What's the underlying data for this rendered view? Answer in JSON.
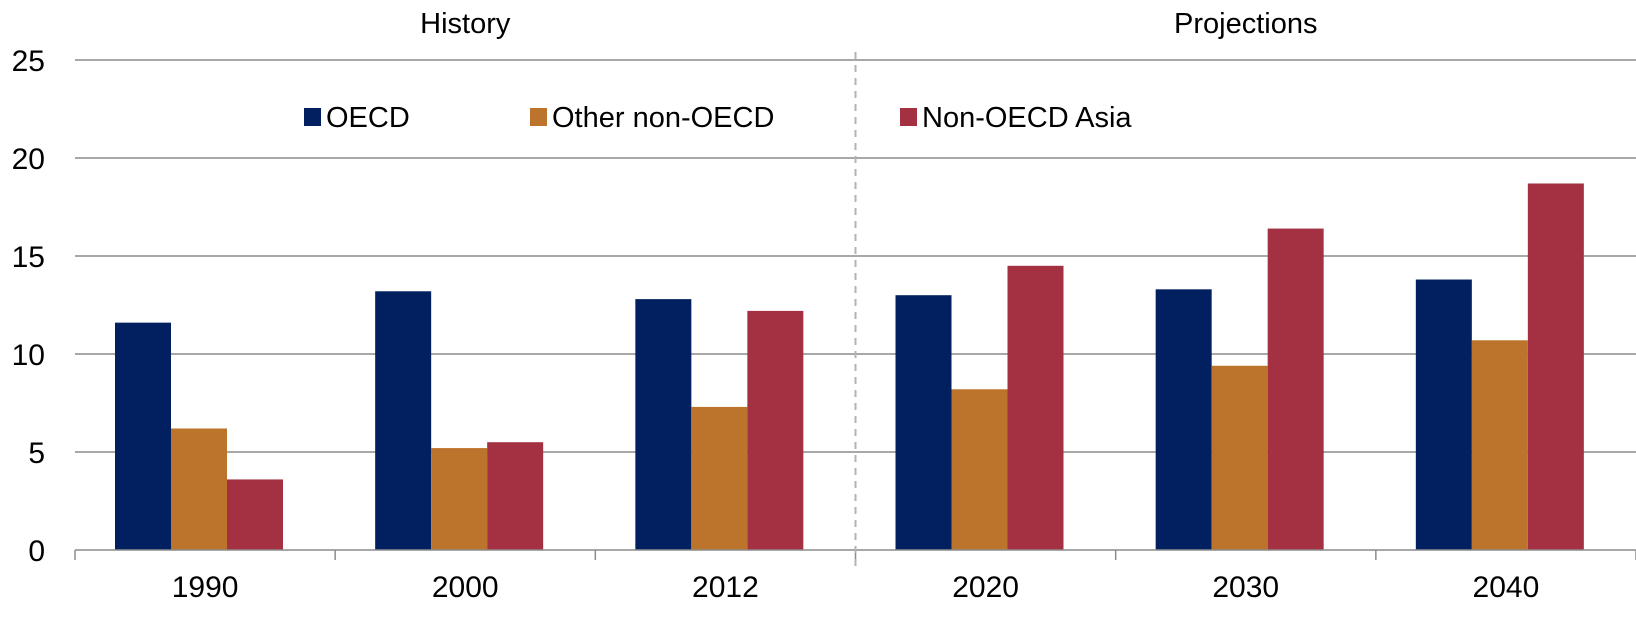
{
  "chart_data": {
    "type": "bar",
    "title": "",
    "xlabel": "",
    "ylabel": "",
    "ylim": [
      0,
      25
    ],
    "yticks": [
      "0",
      "5",
      "10",
      "15",
      "20",
      "25"
    ],
    "grid": true,
    "legend_placement": "top-center",
    "sections": [
      {
        "label": "History",
        "categories": [
          "1990",
          "2000",
          "2012"
        ]
      },
      {
        "label": "Projections",
        "categories": [
          "2020",
          "2030",
          "2040"
        ]
      }
    ],
    "categories": [
      "1990",
      "2000",
      "2012",
      "2020",
      "2030",
      "2040"
    ],
    "series": [
      {
        "name": "OECD",
        "color": "#02205F",
        "values": [
          11.6,
          13.2,
          12.8,
          13.0,
          13.3,
          13.8
        ]
      },
      {
        "name": "Other non-OECD",
        "color": "#BC742C",
        "values": [
          6.2,
          5.2,
          7.3,
          8.2,
          9.4,
          10.7
        ]
      },
      {
        "name": "Non-OECD Asia",
        "color": "#A33141",
        "values": [
          3.6,
          5.5,
          12.2,
          14.5,
          16.4,
          18.7
        ]
      }
    ]
  }
}
